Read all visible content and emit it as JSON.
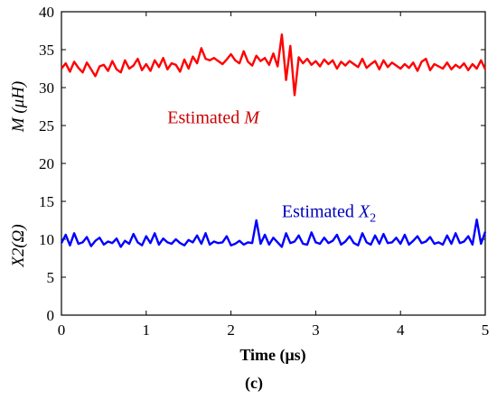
{
  "chart_data": {
    "type": "line",
    "xlabel": "Time (μs)",
    "ylabel_top": "M (μH)",
    "ylabel_bottom": "X2(Ω)",
    "caption": "(c)",
    "xlim": [
      0,
      5
    ],
    "ylim": [
      0,
      40
    ],
    "xticks": [
      "0",
      "1",
      "2",
      "3",
      "4",
      "5"
    ],
    "yticks": [
      "0",
      "5",
      "10",
      "15",
      "20",
      "25",
      "30",
      "35",
      "40"
    ],
    "grid": false,
    "series": [
      {
        "color": "#ff0000",
        "x": [
          0.0,
          0.05,
          0.1,
          0.15,
          0.2,
          0.25,
          0.3,
          0.35,
          0.4,
          0.45,
          0.5,
          0.55,
          0.6,
          0.65,
          0.7,
          0.75,
          0.8,
          0.85,
          0.9,
          0.95,
          1.0,
          1.05,
          1.1,
          1.15,
          1.2,
          1.25,
          1.3,
          1.35,
          1.4,
          1.45,
          1.5,
          1.55,
          1.6,
          1.65,
          1.7,
          1.75,
          1.8,
          1.85,
          1.9,
          1.95,
          2.0,
          2.05,
          2.1,
          2.15,
          2.2,
          2.25,
          2.3,
          2.35,
          2.4,
          2.45,
          2.5,
          2.55,
          2.6,
          2.65,
          2.7,
          2.75,
          2.8,
          2.85,
          2.9,
          2.95,
          3.0,
          3.05,
          3.1,
          3.15,
          3.2,
          3.25,
          3.3,
          3.35,
          3.4,
          3.45,
          3.5,
          3.55,
          3.6,
          3.65,
          3.7,
          3.75,
          3.8,
          3.85,
          3.9,
          3.95,
          4.0,
          4.05,
          4.1,
          4.15,
          4.2,
          4.25,
          4.3,
          4.35,
          4.4,
          4.45,
          4.5,
          4.55,
          4.6,
          4.65,
          4.7,
          4.75,
          4.8,
          4.85,
          4.9,
          4.95,
          5.0
        ],
        "y": [
          32.5,
          33.2,
          32.1,
          33.4,
          32.6,
          32.0,
          33.3,
          32.4,
          31.5,
          32.8,
          33.0,
          32.2,
          33.5,
          32.4,
          32.0,
          33.6,
          32.5,
          32.9,
          33.8,
          32.3,
          33.1,
          32.2,
          33.6,
          32.7,
          33.9,
          32.4,
          33.2,
          33.0,
          32.1,
          33.7,
          32.5,
          34.1,
          33.2,
          35.2,
          33.8,
          33.6,
          33.9,
          33.5,
          33.1,
          33.7,
          34.4,
          33.6,
          33.2,
          34.8,
          33.4,
          32.9,
          34.2,
          33.5,
          33.9,
          33.0,
          34.5,
          32.8,
          37.0,
          31.0,
          35.5,
          29.0,
          34.0,
          33.2,
          33.8,
          33.0,
          33.5,
          32.8,
          33.7,
          33.1,
          33.6,
          32.5,
          33.4,
          32.9,
          33.5,
          33.1,
          32.7,
          33.8,
          32.6,
          33.1,
          33.5,
          32.4,
          33.6,
          32.7,
          33.3,
          32.9,
          32.5,
          33.1,
          32.6,
          33.3,
          32.2,
          33.4,
          33.8,
          32.3,
          33.1,
          32.8,
          32.5,
          33.3,
          32.4,
          33.0,
          32.6,
          33.2,
          32.3,
          33.1,
          32.5,
          33.6,
          32.4
        ]
      },
      {
        "color": "#0000ff",
        "x": [
          0.0,
          0.05,
          0.1,
          0.15,
          0.2,
          0.25,
          0.3,
          0.35,
          0.4,
          0.45,
          0.5,
          0.55,
          0.6,
          0.65,
          0.7,
          0.75,
          0.8,
          0.85,
          0.9,
          0.95,
          1.0,
          1.05,
          1.1,
          1.15,
          1.2,
          1.25,
          1.3,
          1.35,
          1.4,
          1.45,
          1.5,
          1.55,
          1.6,
          1.65,
          1.7,
          1.75,
          1.8,
          1.85,
          1.9,
          1.95,
          2.0,
          2.05,
          2.1,
          2.15,
          2.2,
          2.25,
          2.3,
          2.35,
          2.4,
          2.45,
          2.5,
          2.55,
          2.6,
          2.65,
          2.7,
          2.75,
          2.8,
          2.85,
          2.9,
          2.95,
          3.0,
          3.05,
          3.1,
          3.15,
          3.2,
          3.25,
          3.3,
          3.35,
          3.4,
          3.45,
          3.5,
          3.55,
          3.6,
          3.65,
          3.7,
          3.75,
          3.8,
          3.85,
          3.9,
          3.95,
          4.0,
          4.05,
          4.1,
          4.15,
          4.2,
          4.25,
          4.3,
          4.35,
          4.4,
          4.45,
          4.5,
          4.55,
          4.6,
          4.65,
          4.7,
          4.75,
          4.8,
          4.85,
          4.9,
          4.95,
          5.0
        ],
        "y": [
          9.5,
          10.6,
          9.2,
          10.8,
          9.4,
          9.6,
          10.3,
          9.1,
          9.8,
          10.2,
          9.3,
          9.7,
          9.5,
          10.1,
          9.0,
          9.8,
          9.4,
          10.7,
          9.6,
          9.2,
          10.4,
          9.5,
          10.8,
          9.3,
          10.1,
          9.6,
          9.4,
          10.0,
          9.5,
          9.2,
          9.9,
          9.6,
          10.5,
          9.4,
          10.8,
          9.3,
          9.7,
          9.5,
          9.6,
          10.4,
          9.2,
          9.4,
          9.8,
          9.3,
          9.6,
          9.5,
          12.5,
          9.4,
          10.6,
          9.3,
          10.2,
          9.6,
          9.0,
          10.8,
          9.5,
          9.7,
          10.5,
          9.4,
          9.3,
          10.9,
          9.6,
          9.4,
          10.2,
          9.5,
          9.8,
          10.6,
          9.3,
          9.7,
          10.4,
          9.5,
          9.2,
          10.8,
          9.6,
          9.3,
          10.5,
          9.4,
          10.7,
          9.5,
          9.6,
          10.2,
          9.4,
          10.6,
          9.3,
          9.8,
          10.4,
          9.5,
          9.7,
          10.3,
          9.4,
          9.6,
          9.3,
          10.5,
          9.4,
          10.8,
          9.5,
          9.7,
          10.4,
          9.3,
          12.6,
          9.4,
          11.0
        ]
      }
    ],
    "annotations": [
      {
        "text": "Estimated ",
        "symbol": "M",
        "sub": "",
        "color": "#cc0000",
        "x": 1.25,
        "y": 25.3
      },
      {
        "text": "Estimated ",
        "symbol": "X",
        "sub": "2",
        "color": "#0000bb",
        "x": 2.6,
        "y": 12.9
      }
    ]
  }
}
